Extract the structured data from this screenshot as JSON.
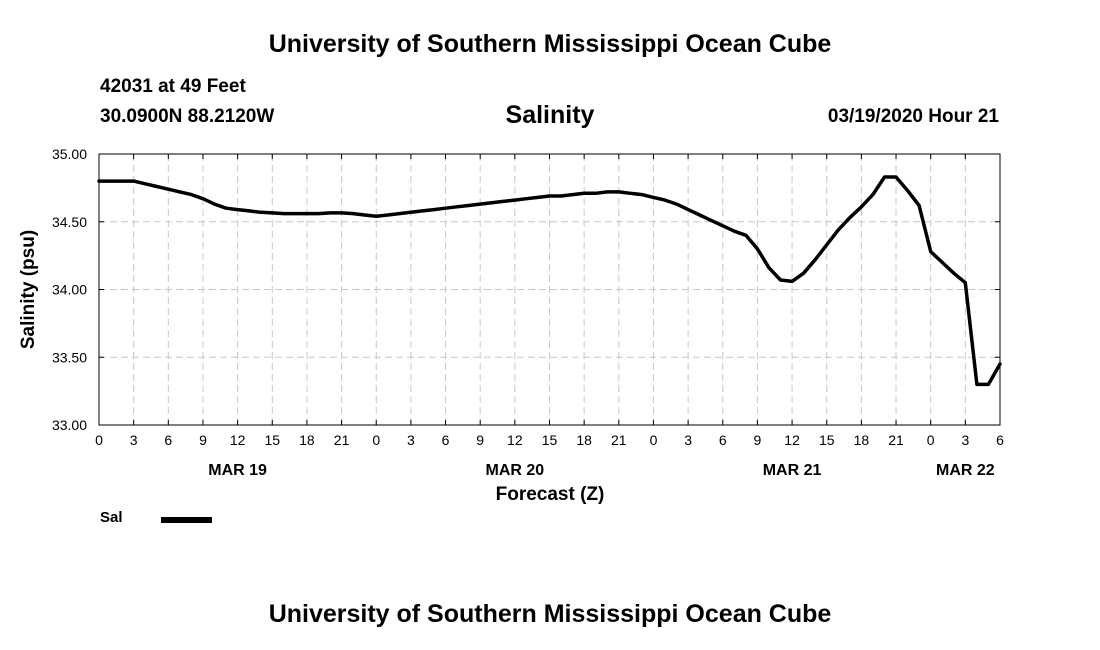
{
  "header": {
    "title": "University of Southern Mississippi Ocean Cube",
    "station": "42031 at 49 Feet",
    "coords": "30.0900N 88.2120W",
    "datetime": "03/19/2020 Hour 21"
  },
  "footer": {
    "title": "University of Southern Mississippi Ocean Cube"
  },
  "chart_data": {
    "type": "line",
    "title": "Salinity",
    "xlabel": "Forecast (Z)",
    "ylabel": "Salinity (psu)",
    "x_unit": "hours from MAR 19 00Z",
    "xlim": [
      0,
      78
    ],
    "ylim": [
      33.0,
      35.0
    ],
    "grid": true,
    "legend": "bottom-left",
    "line_color": "#000000",
    "y_ticks": [
      "33.00",
      "33.50",
      "34.00",
      "34.50",
      "35.00"
    ],
    "y_tick_values": [
      33.0,
      33.5,
      34.0,
      34.5,
      35.0
    ],
    "x_ticks": [
      {
        "x": 0,
        "label": "0"
      },
      {
        "x": 3,
        "label": "3"
      },
      {
        "x": 6,
        "label": "6"
      },
      {
        "x": 9,
        "label": "9"
      },
      {
        "x": 12,
        "label": "12"
      },
      {
        "x": 15,
        "label": "15"
      },
      {
        "x": 18,
        "label": "18"
      },
      {
        "x": 21,
        "label": "21"
      },
      {
        "x": 24,
        "label": "0"
      },
      {
        "x": 27,
        "label": "3"
      },
      {
        "x": 30,
        "label": "6"
      },
      {
        "x": 33,
        "label": "9"
      },
      {
        "x": 36,
        "label": "12"
      },
      {
        "x": 39,
        "label": "15"
      },
      {
        "x": 42,
        "label": "18"
      },
      {
        "x": 45,
        "label": "21"
      },
      {
        "x": 48,
        "label": "0"
      },
      {
        "x": 51,
        "label": "3"
      },
      {
        "x": 54,
        "label": "6"
      },
      {
        "x": 57,
        "label": "9"
      },
      {
        "x": 60,
        "label": "12"
      },
      {
        "x": 63,
        "label": "15"
      },
      {
        "x": 66,
        "label": "18"
      },
      {
        "x": 69,
        "label": "21"
      },
      {
        "x": 72,
        "label": "0"
      },
      {
        "x": 75,
        "label": "3"
      },
      {
        "x": 78,
        "label": "6"
      }
    ],
    "day_labels": [
      {
        "x": 12,
        "label": "MAR 19"
      },
      {
        "x": 36,
        "label": "MAR 20"
      },
      {
        "x": 60,
        "label": "MAR 21"
      },
      {
        "x": 75,
        "label": "MAR 22"
      }
    ],
    "series": [
      {
        "name": "Sal",
        "x": [
          0,
          1,
          2,
          3,
          4,
          5,
          6,
          7,
          8,
          9,
          10,
          11,
          12,
          13,
          14,
          15,
          16,
          17,
          18,
          19,
          20,
          21,
          22,
          23,
          24,
          25,
          26,
          27,
          28,
          29,
          30,
          31,
          32,
          33,
          34,
          35,
          36,
          37,
          38,
          39,
          40,
          41,
          42,
          43,
          44,
          45,
          46,
          47,
          48,
          49,
          50,
          51,
          52,
          53,
          54,
          55,
          56,
          57,
          58,
          59,
          60,
          61,
          62,
          63,
          64,
          65,
          66,
          67,
          68,
          69,
          70,
          71,
          72,
          73,
          74,
          75,
          76,
          77,
          78
        ],
        "values": [
          34.8,
          34.8,
          34.8,
          34.8,
          34.78,
          34.76,
          34.74,
          34.72,
          34.7,
          34.67,
          34.63,
          34.6,
          34.59,
          34.58,
          34.57,
          34.565,
          34.56,
          34.56,
          34.56,
          34.56,
          34.565,
          34.565,
          34.56,
          34.55,
          34.54,
          34.55,
          34.56,
          34.57,
          34.58,
          34.59,
          34.6,
          34.61,
          34.62,
          34.63,
          34.64,
          34.65,
          34.66,
          34.67,
          34.68,
          34.69,
          34.69,
          34.7,
          34.71,
          34.71,
          34.72,
          34.72,
          34.71,
          34.7,
          34.68,
          34.66,
          34.63,
          34.59,
          34.55,
          34.51,
          34.47,
          34.43,
          34.4,
          34.3,
          34.16,
          34.07,
          34.06,
          34.12,
          34.22,
          34.33,
          34.44,
          34.53,
          34.61,
          34.7,
          34.83,
          34.83,
          34.73,
          34.62,
          34.28,
          34.2,
          34.12,
          34.05,
          33.3,
          33.3,
          33.45
        ]
      }
    ]
  }
}
